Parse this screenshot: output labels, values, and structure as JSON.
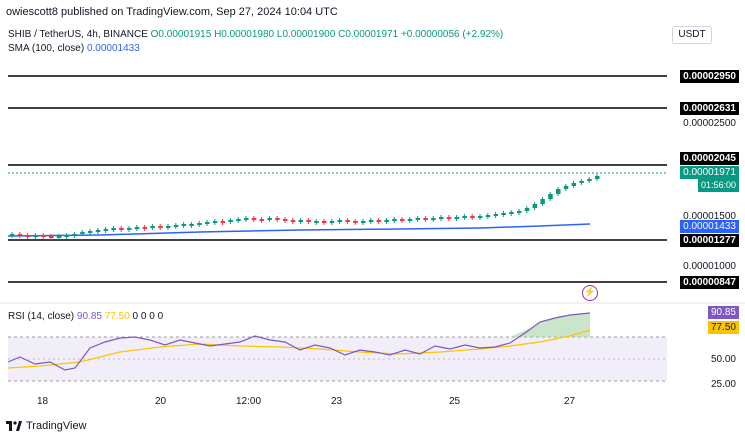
{
  "header": {
    "text": "owiescott8 published on TradingView.com, Sep 27, 2024 10:04 UTC"
  },
  "symbol": {
    "name": "SHIB / TetherUS, 4h, BINANCE",
    "open": "O0.00001915",
    "high": "H0.00001980",
    "low": "L0.00001900",
    "close": "C0.00001971",
    "change": "+0.00000056 (+2.92%)"
  },
  "sma": {
    "label": "SMA (100, close)",
    "value": "0.00001433"
  },
  "currency": "USDT",
  "price_labels": {
    "l1": "0.00002950",
    "l2": "0.00002631",
    "l3": "0.00002500",
    "l4": "0.00002045",
    "current": "0.00001971",
    "countdown": "01:56:00",
    "l5": "0.00001500",
    "sma_value": "0.00001433",
    "l6": "0.00001277",
    "l7": "0.00001000",
    "l8": "0.00000847"
  },
  "rsi": {
    "label": "RSI (14, close)",
    "value1": "90.85",
    "value2": "77.50",
    "zeros": "0 0 0 0",
    "axis_50": "50.00",
    "axis_25": "25.00",
    "tag1": "90.85",
    "tag2": "77.50"
  },
  "x_axis": [
    "18",
    "20",
    "12:00",
    "23",
    "25",
    "27"
  ],
  "brand": "TradingView",
  "colors": {
    "up": "#089981",
    "down": "#f23645",
    "sma": "#2962ff",
    "rsi": "#7e57c2",
    "rsi_ma": "#f7c600"
  }
}
